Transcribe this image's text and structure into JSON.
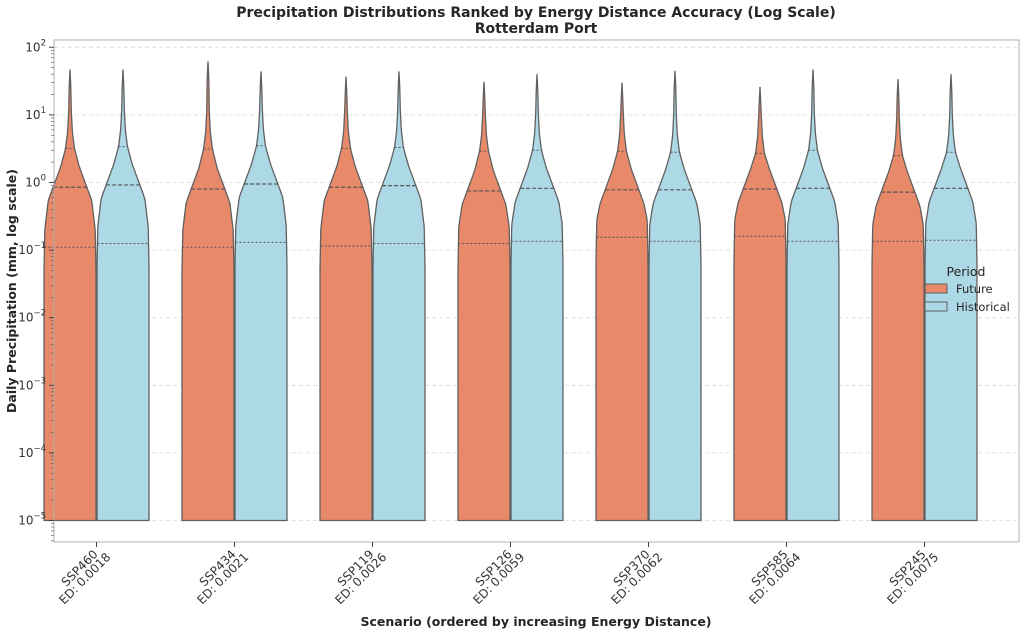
{
  "chart_data": {
    "type": "violin",
    "title": "Precipitation Distributions Ranked by Energy Distance Accuracy (Log Scale)",
    "subtitle": "Rotterdam Port",
    "xlabel": "Scenario (ordered by increasing Energy Distance)",
    "ylabel": "Daily Precipitation (mm, log scale)",
    "yscale": "log",
    "ylim": [
      4.5e-06,
      130
    ],
    "yticks": [
      {
        "value": 1e-05,
        "base": "10",
        "exp": "−5"
      },
      {
        "value": 0.0001,
        "base": "10",
        "exp": "−4"
      },
      {
        "value": 0.001,
        "base": "10",
        "exp": "−3"
      },
      {
        "value": 0.01,
        "base": "10",
        "exp": "−2"
      },
      {
        "value": 0.1,
        "base": "10",
        "exp": "−1"
      },
      {
        "value": 1,
        "base": "10",
        "exp": "0"
      },
      {
        "value": 10,
        "base": "10",
        "exp": "1"
      },
      {
        "value": 100,
        "base": "10",
        "exp": "2"
      }
    ],
    "grid": true,
    "legend": {
      "title": "Period",
      "position": "center-right",
      "entries": [
        {
          "label": "Future",
          "color": "#e8896a"
        },
        {
          "label": "Historical",
          "color": "#add8e6"
        }
      ]
    },
    "categories": [
      {
        "scenario": "SSP460",
        "ed": "ED: 0.0018"
      },
      {
        "scenario": "SSP434",
        "ed": "ED: 0.0021"
      },
      {
        "scenario": "SSP119",
        "ed": "ED: 0.0026"
      },
      {
        "scenario": "SSP126",
        "ed": "ED: 0.0059"
      },
      {
        "scenario": "SSP370",
        "ed": "ED: 0.0062"
      },
      {
        "scenario": "SSP585",
        "ed": "ED: 0.0064"
      },
      {
        "scenario": "SSP245",
        "ed": "ED: 0.0075"
      }
    ],
    "series": [
      {
        "name": "Future",
        "color": "#e8896a",
        "min": [
          1e-05,
          1e-05,
          1e-05,
          1e-05,
          1e-05,
          1e-05,
          1e-05
        ],
        "max": [
          47,
          62,
          37,
          31,
          30,
          26,
          34
        ],
        "q1": [
          0.11,
          0.11,
          0.115,
          0.125,
          0.155,
          0.16,
          0.135
        ],
        "median": [
          0.85,
          0.8,
          0.85,
          0.75,
          0.78,
          0.8,
          0.72
        ],
        "q3": [
          3.2,
          3.1,
          3.2,
          2.9,
          2.9,
          2.7,
          2.5
        ]
      },
      {
        "name": "Historical",
        "color": "#add8e6",
        "min": [
          1e-05,
          1e-05,
          1e-05,
          1e-05,
          1e-05,
          1e-05,
          1e-05
        ],
        "max": [
          47,
          44,
          44,
          40,
          45,
          47,
          40
        ],
        "q1": [
          0.125,
          0.13,
          0.125,
          0.135,
          0.135,
          0.135,
          0.14
        ],
        "median": [
          0.92,
          0.95,
          0.9,
          0.82,
          0.78,
          0.82,
          0.82
        ],
        "q3": [
          3.4,
          3.5,
          3.3,
          3.0,
          2.8,
          3.0,
          2.8
        ]
      }
    ]
  }
}
